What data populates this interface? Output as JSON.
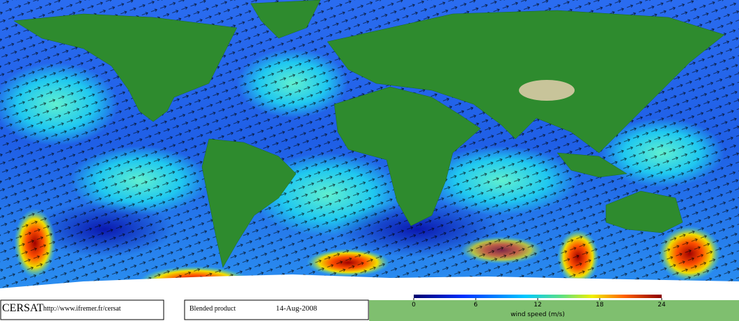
{
  "footer": {
    "logo": "CERSAT",
    "url": "http://www.ifremer.fr/cersat",
    "product": "Blended product",
    "date": "14-Aug-2008"
  },
  "colorbar": {
    "label": "wind speed (m/s)",
    "lim": [
      0,
      24
    ],
    "ticks": [
      0,
      6,
      12,
      18,
      24
    ]
  }
}
